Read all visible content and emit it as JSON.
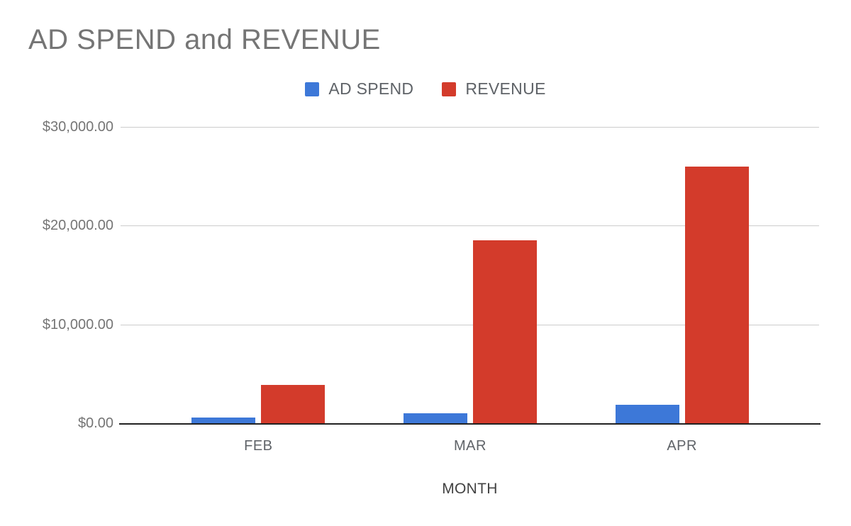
{
  "chart_data": {
    "type": "bar",
    "title": "AD SPEND and REVENUE",
    "xlabel": "MONTH",
    "ylabel": "",
    "categories": [
      "FEB",
      "MAR",
      "APR"
    ],
    "series": [
      {
        "name": "AD SPEND",
        "color": "#3d78d8",
        "values": [
          600,
          1000,
          1900
        ]
      },
      {
        "name": "REVENUE",
        "color": "#d33b2b",
        "values": [
          3900,
          18500,
          26000
        ]
      }
    ],
    "ylim": [
      0,
      30000
    ],
    "yticks": [
      {
        "value": 0,
        "label": "$0.00"
      },
      {
        "value": 10000,
        "label": "$10,000.00"
      },
      {
        "value": 20000,
        "label": "$20,000.00"
      },
      {
        "value": 30000,
        "label": "$30,000.00"
      }
    ],
    "grid": true,
    "legend_position": "top",
    "colors": {
      "gridline": "#cccccc",
      "baseline": "#222222",
      "tick_text": "#757575",
      "title_text": "#757575"
    }
  }
}
